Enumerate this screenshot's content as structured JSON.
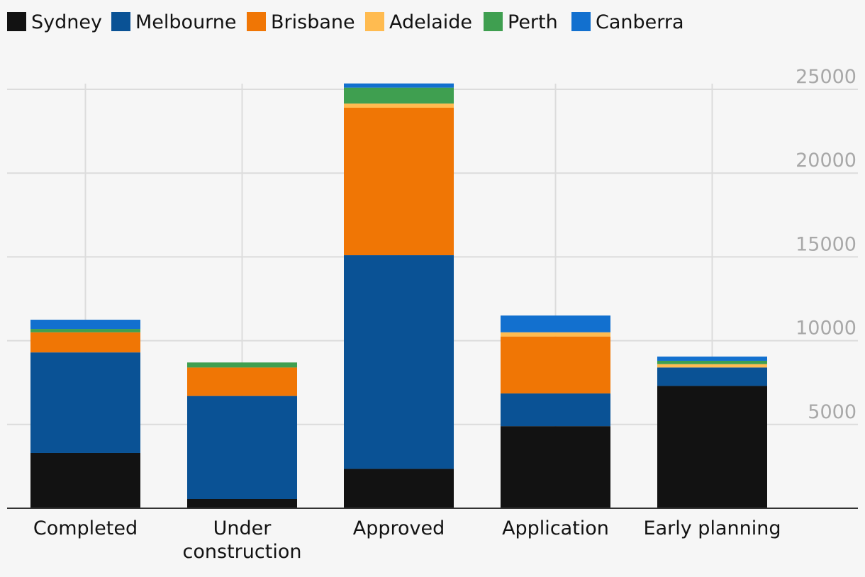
{
  "chart_data": {
    "type": "bar",
    "stacked": true,
    "categories": [
      [
        "Completed"
      ],
      [
        "Under",
        "construction"
      ],
      [
        "Approved"
      ],
      [
        "Application"
      ],
      [
        "Early planning"
      ]
    ],
    "series": [
      {
        "name": "Sydney",
        "color": "#121212",
        "values": [
          3300,
          550,
          2350,
          4900,
          7300
        ]
      },
      {
        "name": "Melbourne",
        "color": "#0a5295",
        "values": [
          6000,
          6150,
          12750,
          1950,
          1100
        ]
      },
      {
        "name": "Brisbane",
        "color": "#f07605",
        "values": [
          1200,
          1700,
          8800,
          3400,
          0
        ]
      },
      {
        "name": "Adelaide",
        "color": "#ffbb50",
        "values": [
          0,
          0,
          250,
          250,
          200
        ]
      },
      {
        "name": "Perth",
        "color": "#3f9f50",
        "values": [
          200,
          300,
          950,
          0,
          200
        ]
      },
      {
        "name": "Canberra",
        "color": "#1270cf",
        "values": [
          550,
          0,
          250,
          1000,
          250
        ]
      }
    ],
    "yticks": [
      5000,
      10000,
      15000,
      20000,
      25000
    ],
    "ylim": [
      0,
      26000
    ],
    "legend_position": "top-left",
    "grid": true,
    "y_axis_position": "right"
  }
}
